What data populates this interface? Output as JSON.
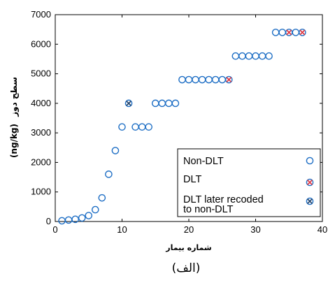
{
  "chart_data": {
    "type": "scatter",
    "title": "",
    "xlabel": "شماره بیمار",
    "ylabel_units": "(ng/kg)",
    "ylabel_text": "سطح دوز",
    "caption": "(الف)",
    "xlim": [
      0,
      40
    ],
    "ylim": [
      0,
      7000
    ],
    "xticks": [
      0,
      10,
      20,
      30,
      40
    ],
    "yticks": [
      0,
      1000,
      2000,
      3000,
      4000,
      5000,
      6000,
      7000
    ],
    "grid": false,
    "legend_position": "bottom-right",
    "series": [
      {
        "name": "Non-DLT",
        "marker": "circle",
        "color": "#1f6fc5",
        "points": [
          [
            1,
            25
          ],
          [
            2,
            50
          ],
          [
            3,
            75
          ],
          [
            4,
            120
          ],
          [
            5,
            200
          ],
          [
            6,
            400
          ],
          [
            7,
            800
          ],
          [
            8,
            1600
          ],
          [
            9,
            2400
          ],
          [
            10,
            3200
          ],
          [
            12,
            3200
          ],
          [
            13,
            3200
          ],
          [
            14,
            3200
          ],
          [
            15,
            4000
          ],
          [
            16,
            4000
          ],
          [
            17,
            4000
          ],
          [
            18,
            4000
          ],
          [
            19,
            4800
          ],
          [
            20,
            4800
          ],
          [
            21,
            4800
          ],
          [
            22,
            4800
          ],
          [
            23,
            4800
          ],
          [
            24,
            4800
          ],
          [
            25,
            4800
          ],
          [
            27,
            5600
          ],
          [
            28,
            5600
          ],
          [
            29,
            5600
          ],
          [
            30,
            5600
          ],
          [
            31,
            5600
          ],
          [
            32,
            5600
          ],
          [
            33,
            6400
          ],
          [
            34,
            6400
          ],
          [
            36,
            6400
          ]
        ]
      },
      {
        "name": "DLT",
        "marker": "circle-x",
        "color": "#e0303a",
        "points": [
          [
            26,
            4800
          ],
          [
            35,
            6400
          ],
          [
            37,
            6400
          ]
        ]
      },
      {
        "name": "DLT later recoded to non-DLT",
        "marker": "circle-x",
        "color": "#1f3f66",
        "points": [
          [
            11,
            4000
          ]
        ]
      }
    ],
    "legend": [
      {
        "label": "Non-DLT",
        "marker": "circle"
      },
      {
        "label": "DLT",
        "marker": "circle-x"
      },
      {
        "label_line1": "DLT later recoded",
        "label_line2": "to non-DLT",
        "marker": "circle-x"
      }
    ]
  }
}
